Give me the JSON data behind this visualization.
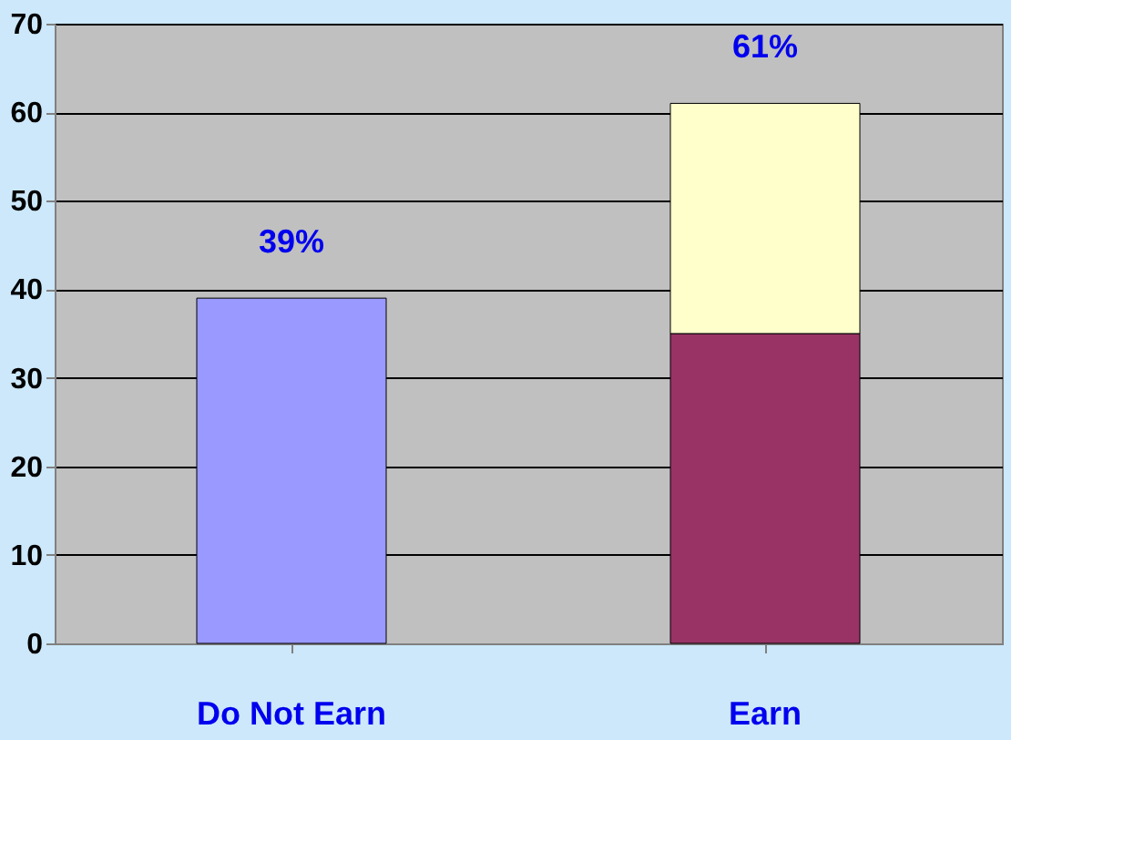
{
  "chart_data": {
    "type": "bar",
    "stacked": true,
    "categories": [
      "Do Not Earn",
      "Earn"
    ],
    "series": [
      {
        "colors": [
          "#9999ff",
          "#993366"
        ],
        "values": [
          39,
          35
        ]
      },
      {
        "color": "#ffffcc",
        "values": [
          null,
          26
        ]
      }
    ],
    "totals": [
      "39%",
      "61%"
    ],
    "ylim": [
      0,
      70
    ],
    "yticks": [
      0,
      10,
      20,
      30,
      40,
      50,
      60,
      70
    ],
    "grid": "y",
    "legend": false
  }
}
